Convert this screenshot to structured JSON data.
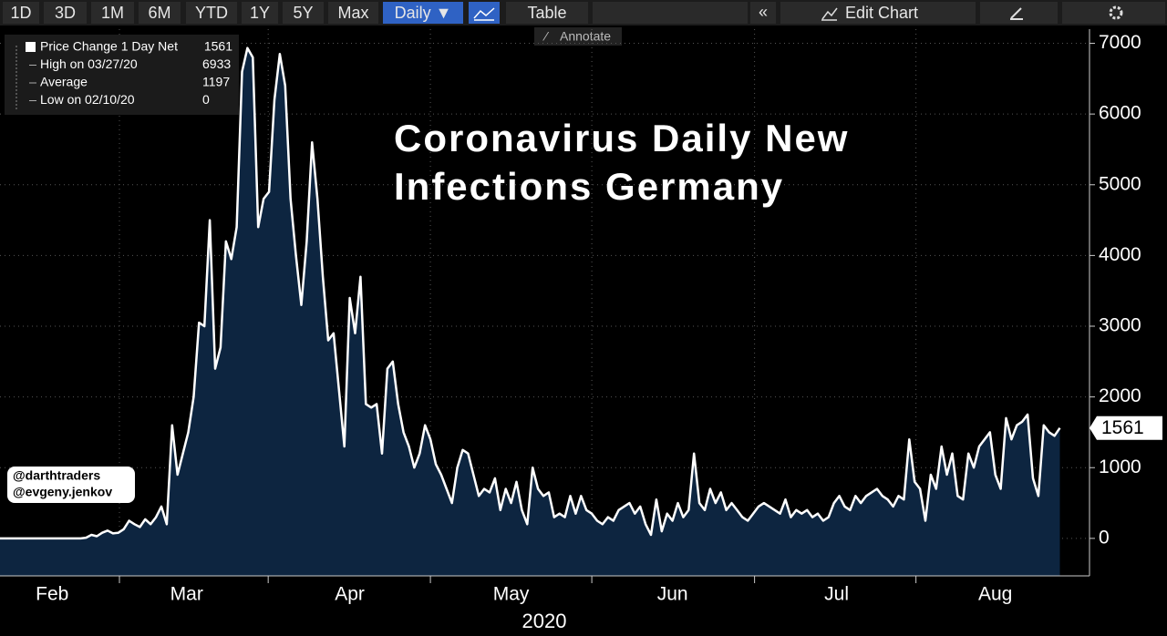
{
  "toolbar": {
    "ranges": [
      "1D",
      "3D",
      "1M",
      "6M",
      "YTD",
      "1Y",
      "5Y",
      "Max"
    ],
    "frequency": "Daily ▼",
    "table": "Table",
    "collapse": "«",
    "edit": "Edit Chart",
    "annotate": "Annotate"
  },
  "watermark": [
    "@darthtraders",
    "@evgeny.jenkov"
  ],
  "chart_data": {
    "type": "line",
    "title": [
      "Coronavirus Daily New",
      "Infections Germany"
    ],
    "xlabel": "2020",
    "legend": [
      {
        "label": "Price Change 1 Day Net",
        "value": 1561
      },
      {
        "label": "High on 03/27/20",
        "value": 6933
      },
      {
        "label": "Average",
        "value": 1197
      },
      {
        "label": "Low on 02/10/20",
        "value": 0
      }
    ],
    "series": [
      {
        "name": "Price Change 1 Day Net",
        "color": "#ffffff",
        "fill": "#0d2540",
        "values": [
          0,
          0,
          0,
          0,
          0,
          0,
          0,
          0,
          0,
          0,
          0,
          0,
          0,
          0,
          0,
          0,
          10,
          50,
          30,
          80,
          110,
          70,
          80,
          130,
          250,
          200,
          160,
          270,
          200,
          300,
          450,
          200,
          1600,
          900,
          1200,
          1500,
          2000,
          3050,
          3000,
          4500,
          2400,
          2700,
          4200,
          3950,
          4400,
          6600,
          6933,
          6800,
          4400,
          4800,
          4900,
          6200,
          6850,
          6400,
          4800,
          4000,
          3300,
          4200,
          5600,
          4800,
          3700,
          2800,
          2900,
          2100,
          1300,
          3400,
          2900,
          3700,
          1900,
          1850,
          1900,
          1200,
          2400,
          2500,
          1900,
          1500,
          1300,
          1000,
          1200,
          1600,
          1400,
          1050,
          900,
          700,
          500,
          1000,
          1250,
          1200,
          900,
          600,
          700,
          650,
          850,
          400,
          700,
          500,
          800,
          400,
          200,
          1000,
          700,
          600,
          650,
          300,
          350,
          300,
          600,
          350,
          600,
          400,
          350,
          250,
          200,
          300,
          250,
          400,
          450,
          500,
          350,
          450,
          200,
          50,
          550,
          100,
          350,
          250,
          500,
          300,
          400,
          1200,
          500,
          400,
          700,
          500,
          650,
          400,
          500,
          400,
          300,
          250,
          350,
          450,
          500,
          450,
          400,
          350,
          550,
          300,
          400,
          350,
          400,
          300,
          350,
          250,
          300,
          500,
          600,
          450,
          400,
          600,
          500,
          600,
          650,
          700,
          600,
          550,
          450,
          600,
          550,
          1400,
          800,
          700,
          250,
          900,
          700,
          1300,
          900,
          1200,
          600,
          550,
          1200,
          1000,
          1300,
          1400,
          1500,
          900,
          700,
          1700,
          1400,
          1600,
          1650,
          1750,
          850,
          600,
          1600,
          1500,
          1450,
          1561
        ]
      }
    ],
    "xlim": [
      0,
      197
    ],
    "xticks": [
      {
        "value": 9.7,
        "label": "Feb"
      },
      {
        "value": 34.7,
        "label": "Mar"
      },
      {
        "value": 65,
        "label": "Apr"
      },
      {
        "value": 95,
        "label": "May"
      },
      {
        "value": 125,
        "label": "Jun"
      },
      {
        "value": 155.5,
        "label": "Jul"
      },
      {
        "value": 185,
        "label": "Aug"
      }
    ],
    "ylim": [
      -530,
      7200
    ],
    "yticks": [
      0,
      1000,
      2000,
      3000,
      4000,
      5000,
      6000,
      7000
    ],
    "grid": true
  }
}
